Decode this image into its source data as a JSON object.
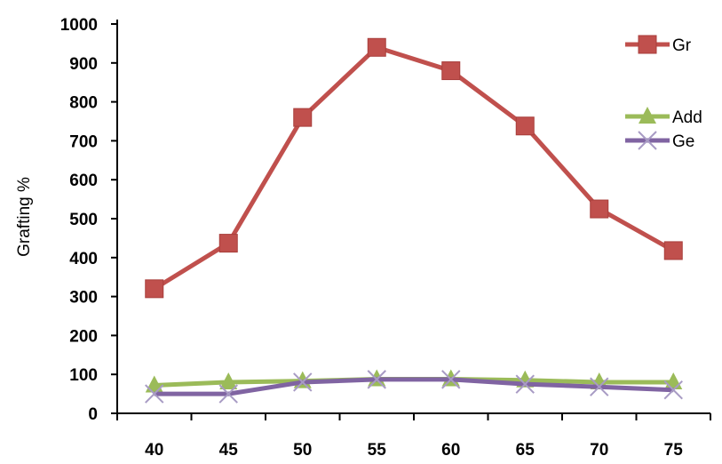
{
  "chart_data": {
    "type": "line",
    "title": "",
    "xlabel": "",
    "ylabel": "Grafting %",
    "categories": [
      "40",
      "45",
      "50",
      "55",
      "60",
      "65",
      "70",
      "75"
    ],
    "ylim": [
      0,
      1000
    ],
    "yticks": [
      "0",
      "100",
      "200",
      "300",
      "400",
      "500",
      "600",
      "700",
      "800",
      "900",
      "1000"
    ],
    "grid": false,
    "legend_position": "top-right",
    "series": [
      {
        "name": "Gr",
        "values": [
          320,
          437,
          760,
          940,
          880,
          738,
          525,
          418
        ],
        "color": "#c0504d",
        "marker": "square"
      },
      {
        "name": "Add",
        "values": [
          72,
          80,
          83,
          88,
          88,
          85,
          80,
          80
        ],
        "color": "#9bbb59",
        "marker": "triangle"
      },
      {
        "name": "Ge",
        "values": [
          50,
          50,
          80,
          87,
          87,
          75,
          68,
          60
        ],
        "color": "#8064a2",
        "marker": "x"
      }
    ]
  }
}
